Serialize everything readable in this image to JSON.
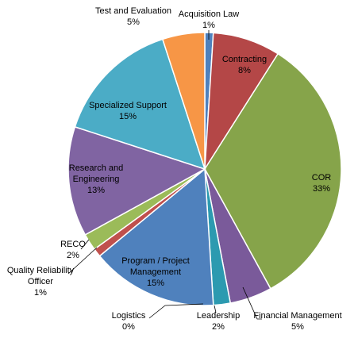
{
  "chart_data": {
    "type": "pie",
    "title": "",
    "slices": [
      {
        "label": "Acquisition Law",
        "value": 1,
        "pct_label": "1%",
        "color": "#4F81BD"
      },
      {
        "label": "Contracting",
        "value": 8,
        "pct_label": "8%",
        "color": "#B44747"
      },
      {
        "label": "COR",
        "value": 33,
        "pct_label": "33%",
        "color": "#86A44A"
      },
      {
        "label": "Financial Management",
        "value": 5,
        "pct_label": "5%",
        "color": "#7A5A9A"
      },
      {
        "label": "Leadership",
        "value": 2,
        "pct_label": "2%",
        "color": "#2C9AB0"
      },
      {
        "label": "Logistics",
        "value": 0,
        "pct_label": "0%",
        "color": "#E88E36"
      },
      {
        "label": "Program / Project Management",
        "value": 15,
        "pct_label": "15%",
        "color": "#4F81BD"
      },
      {
        "label": "Quality Reliability Officer",
        "value": 1,
        "pct_label": "1%",
        "color": "#C0504D"
      },
      {
        "label": "RECO",
        "value": 2,
        "pct_label": "2%",
        "color": "#9BBB59"
      },
      {
        "label": "Research and Engineering",
        "value": 13,
        "pct_label": "13%",
        "color": "#8064A2"
      },
      {
        "label": "Specialized Support",
        "value": 15,
        "pct_label": "15%",
        "color": "#4BACC6"
      },
      {
        "label": "Test and Evaluation",
        "value": 5,
        "pct_label": "5%",
        "color": "#F79646"
      }
    ]
  }
}
